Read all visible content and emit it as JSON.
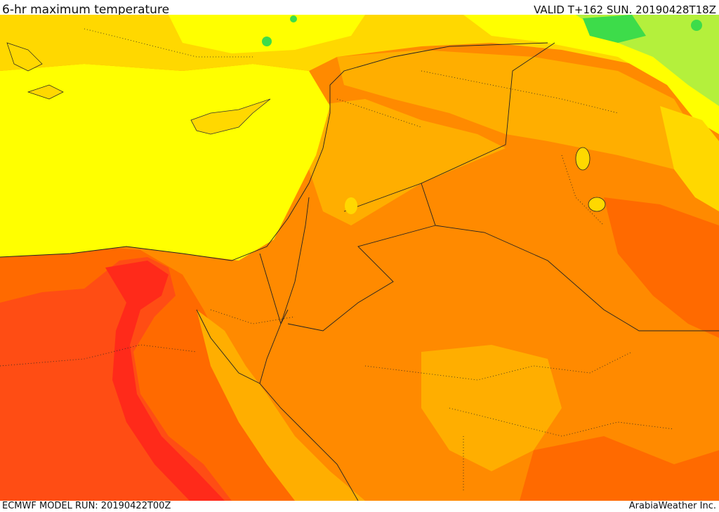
{
  "header": {
    "title": "6-hr maximum temperature",
    "valid": "VALID T+162 SUN. 20190428T18Z"
  },
  "footer": {
    "model_run": "ECMWF MODEL RUN: 20190422T00Z",
    "provider": "ArabiaWeather Inc."
  },
  "legend_colors": {
    "green": "#3ddc4a",
    "light_green": "#b4f03c",
    "yellow": "#ffff00",
    "gold": "#ffd800",
    "amber": "#ffae00",
    "orange": "#ff8a00",
    "dark_orange": "#ff6a00",
    "red_orange": "#ff4d14",
    "red": "#ff2a1a"
  }
}
